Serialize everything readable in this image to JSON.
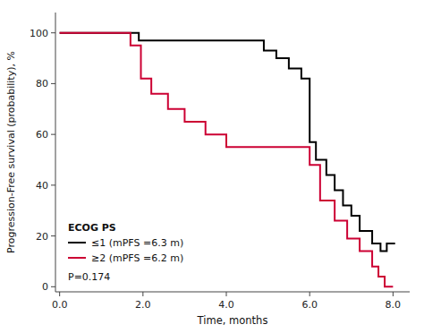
{
  "chart_data": {
    "type": "line",
    "xlabel": "Time, months",
    "ylabel": "Progression-Free survival (probability), %",
    "legend_title": "ECOG PS",
    "annotations": [
      "P=0.174"
    ],
    "series": [
      {
        "name": "≤1 (mPFS =6.3 m)",
        "color": "#000000",
        "x": [
          0.0,
          1.9,
          1.9,
          4.9,
          4.9,
          5.2,
          5.2,
          5.5,
          5.5,
          5.8,
          5.8,
          6.0,
          6.0,
          6.15,
          6.15,
          6.4,
          6.4,
          6.6,
          6.6,
          6.8,
          6.8,
          7.0,
          7.0,
          7.2,
          7.2,
          7.5,
          7.5,
          7.7,
          7.7,
          7.85,
          7.85,
          8.05
        ],
        "values": [
          100,
          100,
          97,
          97,
          93,
          93,
          90,
          90,
          86,
          86,
          82,
          82,
          57,
          57,
          50,
          50,
          44,
          44,
          38,
          38,
          32,
          32,
          28,
          28,
          22,
          22,
          17,
          17,
          14,
          14,
          17,
          17
        ]
      },
      {
        "name": "≥2 (mPFS =6.2 m)",
        "color": "#cc0033",
        "x": [
          0.0,
          1.7,
          1.7,
          1.95,
          1.95,
          2.2,
          2.2,
          2.6,
          2.6,
          3.0,
          3.0,
          3.5,
          3.5,
          4.0,
          4.0,
          6.0,
          6.0,
          6.25,
          6.25,
          6.6,
          6.6,
          6.9,
          6.9,
          7.2,
          7.2,
          7.5,
          7.5,
          7.65,
          7.65,
          7.8,
          7.8,
          8.0
        ],
        "values": [
          100,
          100,
          95,
          95,
          82,
          82,
          76,
          76,
          70,
          70,
          65,
          65,
          60,
          60,
          55,
          55,
          48,
          48,
          34,
          34,
          26,
          26,
          19,
          19,
          14,
          14,
          8,
          8,
          4,
          4,
          0,
          0
        ]
      }
    ],
    "xlim": [
      -0.1,
      8.4
    ],
    "ylim": [
      -2,
      108
    ],
    "xticks": [
      {
        "value": 0.0,
        "label": "0.0"
      },
      {
        "value": 2.0,
        "label": "2.0"
      },
      {
        "value": 4.0,
        "label": "4.0"
      },
      {
        "value": 6.0,
        "label": "6.0"
      },
      {
        "value": 8.0,
        "label": "8.0"
      }
    ],
    "yticks": [
      0,
      20,
      40,
      60,
      80,
      100
    ],
    "grid": false,
    "legend": "lower left"
  }
}
